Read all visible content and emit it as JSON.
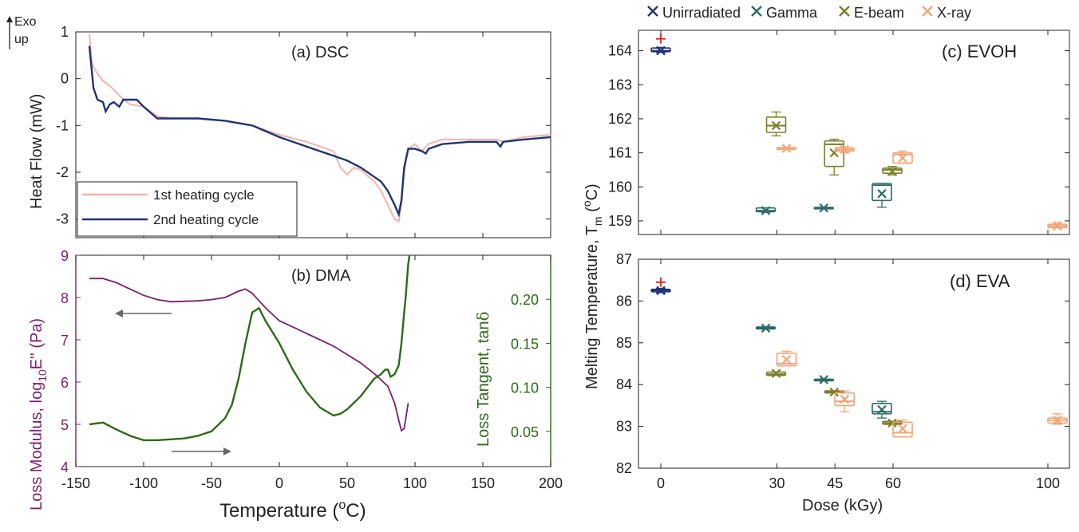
{
  "common": {
    "xlabel_left": "Temperature (",
    "xlabel_left_sup": "o",
    "xlabel_left_end": "C)",
    "xticks_left": [
      "-150",
      "-100",
      "-50",
      "0",
      "50",
      "100",
      "150",
      "200"
    ]
  },
  "dsc": {
    "title": "(a) DSC",
    "ylabel": "Heat Flow (mW)",
    "exo_label_1": "Exo",
    "exo_label_2": "up",
    "yticks": [
      "1",
      "0",
      "-1",
      "-2",
      "-3"
    ],
    "legend": [
      "1st heating cycle",
      "2nd heating cycle"
    ],
    "colors": {
      "first": "#f7b3ad",
      "second": "#1f3474"
    }
  },
  "dma": {
    "title": "(b) DMA",
    "ylabel_left_1": "Loss Modulus, log",
    "ylabel_left_sub": "10",
    "ylabel_left_2": "E'' (Pa)",
    "ylabel_right_1": "Loss Tangent, tan",
    "ylabel_right_delta": "δ",
    "yticks_left": [
      "4",
      "5",
      "6",
      "7",
      "8",
      "9"
    ],
    "yticks_right": [
      "0.05",
      "0.10",
      "0.15",
      "0.20"
    ],
    "colors": {
      "modulus": "#7a1f6b",
      "tan": "#2e6a1a"
    }
  },
  "legend_right": [
    {
      "label": "Unirradiated",
      "color": "#1f3474"
    },
    {
      "label": "Gamma",
      "color": "#2e6b6b"
    },
    {
      "label": "E-beam",
      "color": "#7a7f2a"
    },
    {
      "label": "X-ray",
      "color": "#f2a577"
    }
  ],
  "evoh": {
    "label": "(c) EVOH",
    "yticks": [
      "164",
      "163",
      "162",
      "161",
      "160",
      "159"
    ]
  },
  "eva": {
    "label": "(d) EVA",
    "yticks": [
      "87",
      "86",
      "85",
      "84",
      "83",
      "82"
    ]
  },
  "right_axes": {
    "ylabel_1": "Melting Temperature, T",
    "ylabel_sub": "m",
    "ylabel_2": " (",
    "ylabel_sup": "o",
    "ylabel_3": "C)",
    "xlabel": "Dose (kGy)",
    "xticks": [
      "0",
      "30",
      "45",
      "60",
      "100"
    ]
  },
  "chart_data": [
    {
      "type": "line",
      "title": "(a) DSC",
      "xlabel": "Temperature (oC)",
      "ylabel": "Heat Flow (mW)",
      "xlim": [
        -150,
        200
      ],
      "ylim": [
        -3.4,
        1
      ],
      "series": [
        {
          "name": "1st heating cycle",
          "x": [
            -140,
            -138,
            -135,
            -130,
            -125,
            -120,
            -115,
            -110,
            -100,
            -90,
            -80,
            -60,
            -40,
            -20,
            0,
            20,
            40,
            45,
            50,
            55,
            60,
            70,
            75,
            80,
            85,
            88,
            90,
            92,
            95,
            100,
            105,
            110,
            120,
            140,
            160,
            165,
            180,
            200
          ],
          "y": [
            0.95,
            0.3,
            0.15,
            -0.05,
            -0.15,
            -0.3,
            -0.45,
            -0.55,
            -0.6,
            -0.8,
            -0.85,
            -0.85,
            -0.9,
            -1.0,
            -1.2,
            -1.35,
            -1.55,
            -1.9,
            -2.05,
            -1.9,
            -1.95,
            -2.2,
            -2.4,
            -2.7,
            -3.0,
            -3.05,
            -2.7,
            -2.0,
            -1.5,
            -1.4,
            -1.55,
            -1.4,
            -1.3,
            -1.3,
            -1.3,
            -1.35,
            -1.25,
            -1.2
          ]
        },
        {
          "name": "2nd heating cycle",
          "x": [
            -140,
            -137,
            -134,
            -130,
            -128,
            -125,
            -122,
            -118,
            -115,
            -110,
            -105,
            -100,
            -90,
            -80,
            -60,
            -40,
            -20,
            0,
            20,
            40,
            50,
            60,
            70,
            75,
            80,
            85,
            88,
            90,
            92,
            95,
            100,
            105,
            108,
            110,
            120,
            140,
            160,
            163,
            165,
            180,
            200
          ],
          "y": [
            0.7,
            -0.2,
            -0.45,
            -0.5,
            -0.7,
            -0.55,
            -0.5,
            -0.6,
            -0.45,
            -0.45,
            -0.45,
            -0.6,
            -0.85,
            -0.85,
            -0.85,
            -0.9,
            -1.0,
            -1.25,
            -1.45,
            -1.65,
            -1.75,
            -1.9,
            -2.1,
            -2.2,
            -2.4,
            -2.7,
            -2.9,
            -2.6,
            -1.9,
            -1.5,
            -1.5,
            -1.55,
            -1.6,
            -1.5,
            -1.4,
            -1.35,
            -1.35,
            -1.45,
            -1.35,
            -1.3,
            -1.25
          ]
        }
      ]
    },
    {
      "type": "line",
      "title": "(b) DMA",
      "xlabel": "Temperature (oC)",
      "ylabel": "Loss Modulus, log10E'' (Pa)",
      "ylabel_right": "Loss Tangent, tanδ",
      "xlim": [
        -150,
        200
      ],
      "ylim": [
        4,
        9
      ],
      "ylim_right": [
        0.01,
        0.25
      ],
      "series": [
        {
          "name": "Loss Modulus",
          "x": [
            -140,
            -130,
            -120,
            -110,
            -100,
            -90,
            -80,
            -60,
            -50,
            -40,
            -30,
            -25,
            -20,
            -10,
            0,
            20,
            40,
            60,
            70,
            80,
            85,
            88,
            90,
            92,
            95
          ],
          "y": [
            8.45,
            8.45,
            8.35,
            8.2,
            8.05,
            7.95,
            7.9,
            7.92,
            7.95,
            8.0,
            8.15,
            8.2,
            8.1,
            7.75,
            7.45,
            7.15,
            6.85,
            6.45,
            6.2,
            5.9,
            5.5,
            5.1,
            4.85,
            4.9,
            5.5
          ]
        },
        {
          "name": "Loss Tangent",
          "x": [
            -140,
            -130,
            -120,
            -110,
            -100,
            -90,
            -80,
            -70,
            -60,
            -50,
            -40,
            -35,
            -30,
            -25,
            -20,
            -15,
            -10,
            0,
            10,
            20,
            30,
            40,
            45,
            50,
            60,
            70,
            75,
            78,
            80,
            82,
            85,
            88,
            90,
            92,
            93,
            94,
            95,
            96
          ],
          "y": [
            0.058,
            0.06,
            0.052,
            0.045,
            0.04,
            0.04,
            0.041,
            0.042,
            0.045,
            0.05,
            0.065,
            0.08,
            0.11,
            0.15,
            0.185,
            0.19,
            0.175,
            0.15,
            0.12,
            0.095,
            0.077,
            0.068,
            0.07,
            0.075,
            0.09,
            0.11,
            0.115,
            0.12,
            0.12,
            0.112,
            0.115,
            0.125,
            0.15,
            0.185,
            0.2,
            0.22,
            0.24,
            0.25
          ]
        }
      ]
    },
    {
      "type": "box",
      "title": "(c) EVOH",
      "xlabel": "Dose (kGy)",
      "ylabel": "Melting Temperature, Tm (oC)",
      "xticks": [
        0,
        30,
        45,
        60,
        100
      ],
      "ylim": [
        158.6,
        164.6
      ],
      "series": [
        {
          "name": "Unirradiated",
          "boxes": [
            {
              "dose": 0,
              "min": 163.95,
              "q1": 163.97,
              "median": 164.0,
              "q3": 164.08,
              "max": 164.1,
              "mean": 164.0,
              "outlier": 164.35
            }
          ]
        },
        {
          "name": "Gamma",
          "boxes": [
            {
              "dose": 30,
              "min": 159.25,
              "q1": 159.27,
              "median": 159.3,
              "q3": 159.38,
              "max": 159.38,
              "mean": 159.3
            },
            {
              "dose": 45,
              "min": 159.37,
              "q1": 159.37,
              "median": 159.38,
              "q3": 159.4,
              "max": 159.4,
              "mean": 159.38
            },
            {
              "dose": 60,
              "min": 159.4,
              "q1": 159.6,
              "median": 160.05,
              "q3": 160.1,
              "max": 160.1,
              "mean": 159.8
            }
          ]
        },
        {
          "name": "E-beam",
          "boxes": [
            {
              "dose": 30,
              "min": 161.5,
              "q1": 161.6,
              "median": 161.8,
              "q3": 162.05,
              "max": 162.2,
              "mean": 161.8
            },
            {
              "dose": 45,
              "min": 160.35,
              "q1": 160.6,
              "median": 161.25,
              "q3": 161.35,
              "max": 161.4,
              "mean": 161.0
            },
            {
              "dose": 60,
              "min": 160.35,
              "q1": 160.4,
              "median": 160.5,
              "q3": 160.55,
              "max": 160.6,
              "mean": 160.45
            }
          ]
        },
        {
          "name": "X-ray",
          "boxes": [
            {
              "dose": 30,
              "min": 161.1,
              "q1": 161.12,
              "median": 161.15,
              "q3": 161.15,
              "max": 161.15,
              "mean": 161.13
            },
            {
              "dose": 45,
              "min": 161.0,
              "q1": 161.05,
              "median": 161.1,
              "q3": 161.15,
              "max": 161.15,
              "mean": 161.1
            },
            {
              "dose": 60,
              "min": 160.7,
              "q1": 160.7,
              "median": 160.95,
              "q3": 161.0,
              "max": 161.05,
              "mean": 160.85
            },
            {
              "dose": 100,
              "min": 158.8,
              "q1": 158.8,
              "median": 158.85,
              "q3": 158.9,
              "max": 158.95,
              "mean": 158.85
            }
          ]
        }
      ]
    },
    {
      "type": "box",
      "title": "(d) EVA",
      "xlabel": "Dose (kGy)",
      "ylabel": "Melting Temperature, Tm (oC)",
      "xticks": [
        0,
        30,
        45,
        60,
        100
      ],
      "ylim": [
        82,
        87
      ],
      "series": [
        {
          "name": "Unirradiated",
          "boxes": [
            {
              "dose": 0,
              "min": 86.2,
              "q1": 86.22,
              "median": 86.25,
              "q3": 86.28,
              "max": 86.3,
              "mean": 86.25,
              "outlier": 86.45
            }
          ]
        },
        {
          "name": "Gamma",
          "boxes": [
            {
              "dose": 30,
              "min": 85.33,
              "q1": 85.33,
              "median": 85.35,
              "q3": 85.38,
              "max": 85.38,
              "mean": 85.35
            },
            {
              "dose": 45,
              "min": 84.1,
              "q1": 84.1,
              "median": 84.12,
              "q3": 84.13,
              "max": 84.13,
              "mean": 84.12
            },
            {
              "dose": 60,
              "min": 83.2,
              "q1": 83.3,
              "median": 83.35,
              "q3": 83.55,
              "max": 83.6,
              "mean": 83.4
            }
          ]
        },
        {
          "name": "E-beam",
          "boxes": [
            {
              "dose": 30,
              "min": 84.22,
              "q1": 84.22,
              "median": 84.25,
              "q3": 84.3,
              "max": 84.3,
              "mean": 84.27
            },
            {
              "dose": 45,
              "min": 83.8,
              "q1": 83.8,
              "median": 83.82,
              "q3": 83.85,
              "max": 83.85,
              "mean": 83.82
            },
            {
              "dose": 60,
              "min": 83.05,
              "q1": 83.05,
              "median": 83.08,
              "q3": 83.12,
              "max": 83.12,
              "mean": 83.08
            }
          ]
        },
        {
          "name": "X-ray",
          "boxes": [
            {
              "dose": 30,
              "min": 84.45,
              "q1": 84.45,
              "median": 84.5,
              "q3": 84.75,
              "max": 84.8,
              "mean": 84.6
            },
            {
              "dose": 45,
              "min": 83.35,
              "q1": 83.5,
              "median": 83.6,
              "q3": 83.8,
              "max": 83.85,
              "mean": 83.65
            },
            {
              "dose": 60,
              "min": 82.75,
              "q1": 82.75,
              "median": 82.85,
              "q3": 83.1,
              "max": 83.15,
              "mean": 82.95
            },
            {
              "dose": 100,
              "min": 83.05,
              "q1": 83.08,
              "median": 83.15,
              "q3": 83.2,
              "max": 83.3,
              "mean": 83.15
            }
          ]
        }
      ]
    }
  ]
}
